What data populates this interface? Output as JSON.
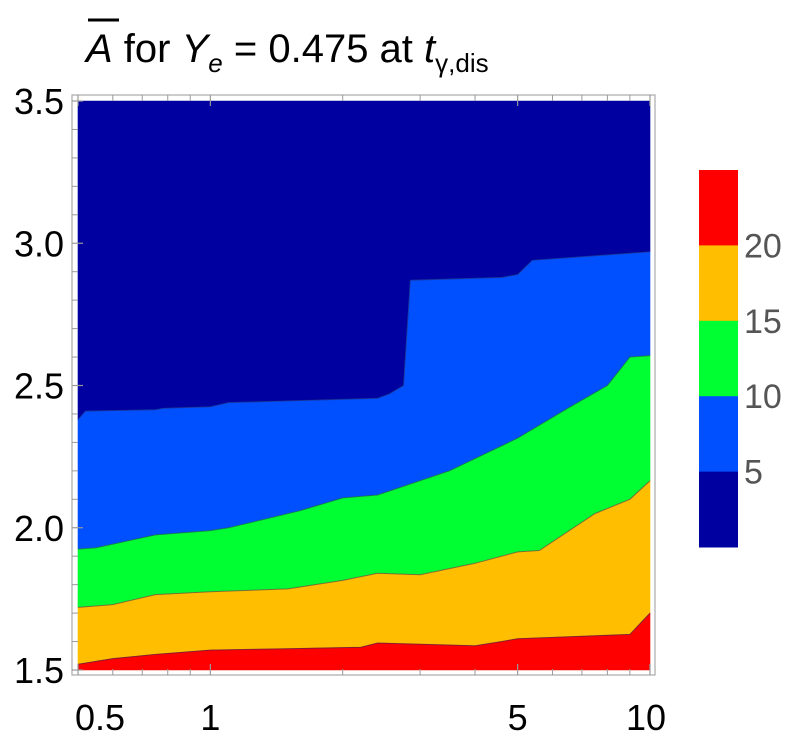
{
  "chart_data": {
    "type": "contour",
    "title": {
      "symbol": "A",
      "middle": " for ",
      "y_symbol": "Y",
      "y_subscript": "e",
      "value_text": " = 0.475 at ",
      "t_symbol": "t",
      "t_subscript": "γ,dis"
    },
    "x_axis": {
      "scale": "log",
      "range": [
        0.5,
        10
      ],
      "ticks": [
        {
          "value": 0.5,
          "label": "0.5"
        },
        {
          "value": 1,
          "label": "1"
        },
        {
          "value": 5,
          "label": "5"
        },
        {
          "value": 10,
          "label": "10"
        }
      ]
    },
    "y_axis": {
      "scale": "linear",
      "range": [
        1.5,
        3.5
      ],
      "ticks": [
        {
          "value": 1.5,
          "label": "1.5"
        },
        {
          "value": 2.0,
          "label": "2.0"
        },
        {
          "value": 2.5,
          "label": "2.5"
        },
        {
          "value": 3.0,
          "label": "3.0"
        },
        {
          "value": 3.5,
          "label": "3.5"
        }
      ]
    },
    "levels": [
      {
        "range": [
          0,
          5
        ],
        "color": "#0000a0"
      },
      {
        "range": [
          5,
          10
        ],
        "color": "#0050ff"
      },
      {
        "range": [
          10,
          15
        ],
        "color": "#00ff32"
      },
      {
        "range": [
          15,
          20
        ],
        "color": "#ffbe00"
      },
      {
        "range": [
          20,
          25
        ],
        "color": "#ff0000"
      }
    ],
    "contours": [
      {
        "level": 5,
        "points": [
          [
            0.5,
            2.38
          ],
          [
            0.52,
            2.41
          ],
          [
            0.75,
            2.415
          ],
          [
            0.78,
            2.42
          ],
          [
            1.0,
            2.425
          ],
          [
            1.1,
            2.44
          ],
          [
            2.4,
            2.455
          ],
          [
            2.55,
            2.47
          ],
          [
            2.75,
            2.5
          ],
          [
            2.85,
            2.87
          ],
          [
            4.6,
            2.88
          ],
          [
            5.0,
            2.89
          ],
          [
            5.4,
            2.94
          ],
          [
            10,
            2.97
          ]
        ]
      },
      {
        "level": 10,
        "points": [
          [
            0.5,
            1.925
          ],
          [
            0.55,
            1.93
          ],
          [
            0.75,
            1.975
          ],
          [
            1.0,
            1.99
          ],
          [
            1.1,
            2.0
          ],
          [
            1.6,
            2.06
          ],
          [
            2.0,
            2.105
          ],
          [
            2.4,
            2.115
          ],
          [
            3.5,
            2.2
          ],
          [
            5.0,
            2.315
          ],
          [
            6.5,
            2.42
          ],
          [
            8.0,
            2.5
          ],
          [
            9.0,
            2.6
          ],
          [
            10,
            2.605
          ]
        ]
      },
      {
        "level": 15,
        "points": [
          [
            0.5,
            1.72
          ],
          [
            0.6,
            1.73
          ],
          [
            0.75,
            1.765
          ],
          [
            1.0,
            1.775
          ],
          [
            1.5,
            1.785
          ],
          [
            2.0,
            1.815
          ],
          [
            2.4,
            1.84
          ],
          [
            3.0,
            1.835
          ],
          [
            4.0,
            1.875
          ],
          [
            5.0,
            1.915
          ],
          [
            5.6,
            1.92
          ],
          [
            7.5,
            2.05
          ],
          [
            9.0,
            2.1
          ],
          [
            10,
            2.165
          ]
        ]
      },
      {
        "level": 20,
        "points": [
          [
            0.5,
            1.52
          ],
          [
            0.6,
            1.54
          ],
          [
            0.75,
            1.555
          ],
          [
            1.0,
            1.57
          ],
          [
            1.5,
            1.575
          ],
          [
            2.2,
            1.58
          ],
          [
            2.4,
            1.595
          ],
          [
            4.0,
            1.585
          ],
          [
            4.6,
            1.6
          ],
          [
            5.0,
            1.61
          ],
          [
            9.0,
            1.625
          ],
          [
            10,
            1.7
          ]
        ]
      }
    ],
    "legend": {
      "placement": "right",
      "ticks": [
        "5",
        "10",
        "15",
        "20"
      ]
    }
  }
}
